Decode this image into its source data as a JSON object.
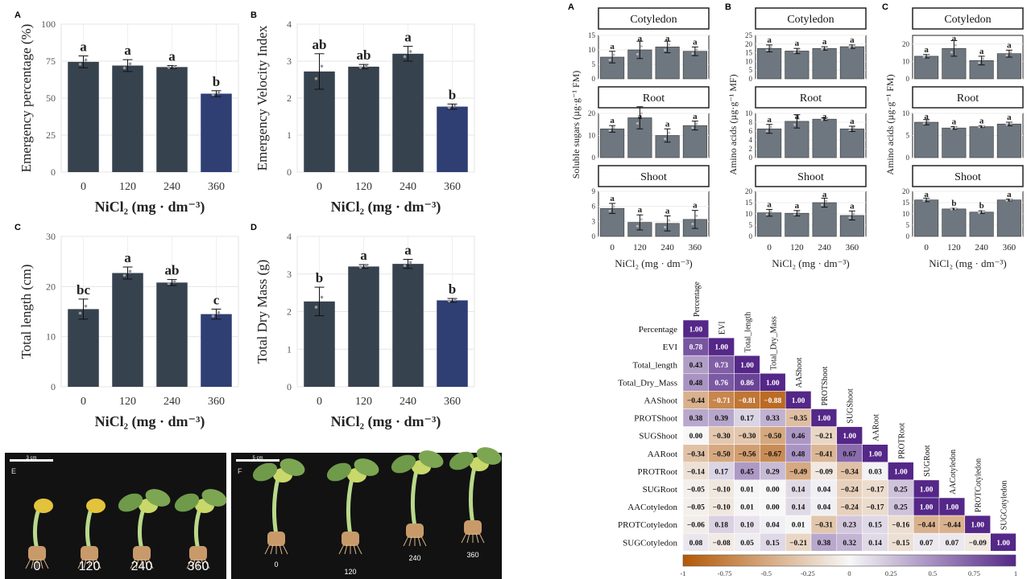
{
  "chart_data": [
    {
      "id": "left_A",
      "panel_label": "A",
      "type": "bar",
      "categories": [
        "0",
        "120",
        "240",
        "360"
      ],
      "values": [
        74.5,
        72,
        71,
        53
      ],
      "errors": [
        4,
        4,
        1,
        2
      ],
      "letters": [
        "a",
        "a",
        "a",
        "b"
      ],
      "ylabel": "Emergency percentage (%)",
      "xlabel": "NiCl₂ (mg · dm⁻³)",
      "ylim": [
        0,
        100
      ],
      "yticks": [
        "0",
        "25",
        "50",
        "75",
        "100"
      ],
      "grid": true
    },
    {
      "id": "left_B",
      "panel_label": "B",
      "type": "bar",
      "categories": [
        "0",
        "120",
        "240",
        "360"
      ],
      "values": [
        2.72,
        2.85,
        3.2,
        1.77
      ],
      "errors": [
        0.48,
        0.06,
        0.2,
        0.07
      ],
      "letters": [
        "ab",
        "ab",
        "a",
        "b"
      ],
      "ylabel": "Emergency Velocity Index",
      "xlabel": "NiCl₂ (mg · dm⁻³)",
      "ylim": [
        0,
        4
      ],
      "yticks": [
        "0",
        "1",
        "2",
        "3",
        "4"
      ],
      "grid": true
    },
    {
      "id": "left_C",
      "panel_label": "C",
      "type": "bar",
      "categories": [
        "0",
        "120",
        "240",
        "360"
      ],
      "values": [
        15.5,
        22.7,
        20.8,
        14.5
      ],
      "errors": [
        2,
        1.2,
        0.6,
        1
      ],
      "letters": [
        "bc",
        "a",
        "ab",
        "c"
      ],
      "ylabel": "Total length (cm)",
      "xlabel": "NiCl₂ (mg · dm⁻³)",
      "ylim": [
        0,
        30
      ],
      "yticks": [
        "0",
        "10",
        "20",
        "30"
      ],
      "grid": true
    },
    {
      "id": "left_D",
      "panel_label": "D",
      "type": "bar",
      "categories": [
        "0",
        "120",
        "240",
        "360"
      ],
      "values": [
        2.27,
        3.2,
        3.27,
        2.3
      ],
      "errors": [
        0.38,
        0.05,
        0.12,
        0.05
      ],
      "letters": [
        "b",
        "a",
        "a",
        "b"
      ],
      "ylabel": "Total Dry Mass (g)",
      "xlabel": "NiCl₂ (mg · dm⁻³)",
      "ylim": [
        0,
        4
      ],
      "yticks": [
        "0",
        "1",
        "2",
        "3",
        "4"
      ],
      "grid": true
    },
    {
      "id": "right_A",
      "panel_label": "A",
      "type": "bar",
      "facets": [
        "Cotyledon",
        "Root",
        "Shoot"
      ],
      "ylabel": "Soluble sugars (µg·g⁻¹ FM)",
      "xlabel": "NiCl₂ (mg · dm⁻³)",
      "categories": [
        "0",
        "120",
        "240",
        "360"
      ],
      "ylims": [
        [
          0,
          15
        ],
        [
          0,
          20
        ],
        [
          0,
          9
        ]
      ],
      "yticks": [
        [
          "0",
          "5",
          "10",
          "15"
        ],
        [
          "0",
          "10",
          "20"
        ],
        [
          "0",
          "3",
          "6",
          "9"
        ]
      ],
      "series": [
        {
          "name": "Cotyledon",
          "values": [
            7.5,
            10,
            11,
            9.5
          ],
          "errors": [
            2,
            3,
            2,
            1.5
          ],
          "letters": [
            "a",
            "a",
            "a",
            "a"
          ]
        },
        {
          "name": "Root",
          "values": [
            13,
            18,
            10,
            14.5
          ],
          "errors": [
            1.5,
            5,
            3,
            2
          ],
          "letters": [
            "a",
            "a",
            "a",
            "a"
          ]
        },
        {
          "name": "Shoot",
          "values": [
            5.6,
            2.8,
            2.6,
            3.4
          ],
          "errors": [
            1,
            1.5,
            1.5,
            1.8
          ],
          "letters": [
            "a",
            "a",
            "a",
            "a"
          ]
        }
      ]
    },
    {
      "id": "right_B",
      "panel_label": "B",
      "type": "bar",
      "facets": [
        "Cotyledon",
        "Root",
        "Shoot"
      ],
      "ylabel": "Amino acids (µg·g⁻¹ MF)",
      "xlabel": "NiCl₂ (mg · dm⁻³)",
      "categories": [
        "0",
        "120",
        "240",
        "360"
      ],
      "ylims": [
        [
          0,
          25
        ],
        [
          0,
          10
        ],
        [
          0,
          20
        ]
      ],
      "yticks": [
        [
          "0",
          "5",
          "10",
          "15",
          "20",
          "25"
        ],
        [
          "0",
          "2",
          "4",
          "6",
          "8",
          "10"
        ],
        [
          "0",
          "5",
          "10",
          "15",
          "20"
        ]
      ],
      "series": [
        {
          "name": "Cotyledon",
          "values": [
            17.5,
            16,
            17.5,
            18.5
          ],
          "errors": [
            2,
            1.5,
            1,
            1
          ],
          "letters": [
            "a",
            "a",
            "a",
            "a"
          ]
        },
        {
          "name": "Root",
          "values": [
            6.5,
            8.2,
            8.7,
            6.5
          ],
          "errors": [
            1,
            1.5,
            0.3,
            0.6
          ],
          "letters": [
            "a",
            "a",
            "a",
            "a"
          ]
        },
        {
          "name": "Shoot",
          "values": [
            10.5,
            10.3,
            15,
            9.3
          ],
          "errors": [
            1.5,
            1.2,
            2,
            2
          ],
          "letters": [
            "a",
            "a",
            "a",
            "a"
          ]
        }
      ]
    },
    {
      "id": "right_C",
      "panel_label": "C",
      "type": "bar",
      "facets": [
        "Cotyledon",
        "Root",
        "Shoot"
      ],
      "ylabel": "Amino acids (µg·g⁻¹ FM)",
      "xlabel": "NiCl₂ (mg · dm⁻³)",
      "categories": [
        "0",
        "120",
        "240",
        "360"
      ],
      "ylims": [
        [
          0,
          25
        ],
        [
          0,
          10
        ],
        [
          0,
          20
        ]
      ],
      "yticks": [
        [
          "0",
          "10",
          "20"
        ],
        [
          "0",
          "5",
          "10"
        ],
        [
          "0",
          "5",
          "10",
          "15",
          "20"
        ]
      ],
      "series": [
        {
          "name": "Cotyledon",
          "values": [
            13,
            17.5,
            10.5,
            14.5
          ],
          "errors": [
            1,
            4.5,
            2.5,
            2
          ],
          "letters": [
            "a",
            "a",
            "a",
            "a"
          ]
        },
        {
          "name": "Root",
          "values": [
            8,
            6.7,
            7,
            7.6
          ],
          "errors": [
            0.6,
            0.3,
            0.2,
            0.4
          ],
          "letters": [
            "a",
            "a",
            "a",
            "a"
          ]
        },
        {
          "name": "Shoot",
          "values": [
            16.2,
            12.2,
            10.8,
            16.2
          ],
          "errors": [
            0.8,
            0.3,
            0.6,
            0.4
          ],
          "letters": [
            "a",
            "b",
            "b",
            "a"
          ]
        }
      ]
    },
    {
      "id": "corr",
      "type": "heatmap",
      "variables": [
        "Percentage",
        "EVI",
        "Total_length",
        "Total_Dry_Mass",
        "AAShoot",
        "PROTShoot",
        "SUGShoot",
        "AARoot",
        "PROTRoot",
        "SUGRoot",
        "AACotyledon",
        "PROTCotyledon",
        "SUGCotyledon"
      ],
      "matrix": [
        [
          1.0
        ],
        [
          0.78,
          1.0
        ],
        [
          0.43,
          0.73,
          1.0
        ],
        [
          0.48,
          0.76,
          0.86,
          1.0
        ],
        [
          -0.44,
          -0.71,
          -0.81,
          -0.88,
          1.0
        ],
        [
          0.38,
          0.39,
          0.17,
          0.33,
          -0.35,
          1.0
        ],
        [
          0.0,
          -0.3,
          -0.3,
          -0.5,
          0.46,
          -0.21,
          1.0
        ],
        [
          -0.34,
          -0.5,
          -0.56,
          -0.67,
          0.48,
          -0.41,
          0.67,
          1.0
        ],
        [
          -0.14,
          0.17,
          0.45,
          0.29,
          -0.49,
          -0.09,
          -0.34,
          0.03,
          1.0
        ],
        [
          -0.05,
          -0.1,
          0.01,
          0.0,
          0.14,
          0.04,
          -0.24,
          -0.17,
          0.25,
          1.0
        ],
        [
          -0.05,
          -0.1,
          0.01,
          0.0,
          0.14,
          0.04,
          -0.24,
          -0.17,
          0.25,
          1.0,
          1.0
        ],
        [
          -0.06,
          0.18,
          0.1,
          0.04,
          0.01,
          -0.31,
          0.23,
          0.15,
          -0.16,
          -0.44,
          -0.44,
          1.0
        ],
        [
          0.08,
          -0.08,
          0.05,
          0.15,
          -0.21,
          0.38,
          0.32,
          0.14,
          -0.15,
          0.07,
          0.07,
          -0.09,
          1.0
        ]
      ],
      "colorbar_ticks": [
        "-1",
        "-0.75",
        "-0.5",
        "-0.25",
        "0",
        "0.25",
        "0.5",
        "0.75",
        "1"
      ],
      "colors": {
        "negative": "#b35806",
        "neutral": "#f7f7f7",
        "positive": "#542788"
      }
    }
  ],
  "photos": [
    {
      "panel_label": "E",
      "scale_text": "3 cm",
      "labels": [
        "0",
        "120",
        "240",
        "360"
      ]
    },
    {
      "panel_label": "F",
      "scale_text": "5 cm",
      "labels": [
        "0",
        "120",
        "240",
        "360"
      ]
    }
  ],
  "colors": {
    "bar_dark": "#37424f",
    "bar_blue": "#2f3e73",
    "bar_gray": "#6e7780",
    "facet_strip": "#ffffff"
  }
}
